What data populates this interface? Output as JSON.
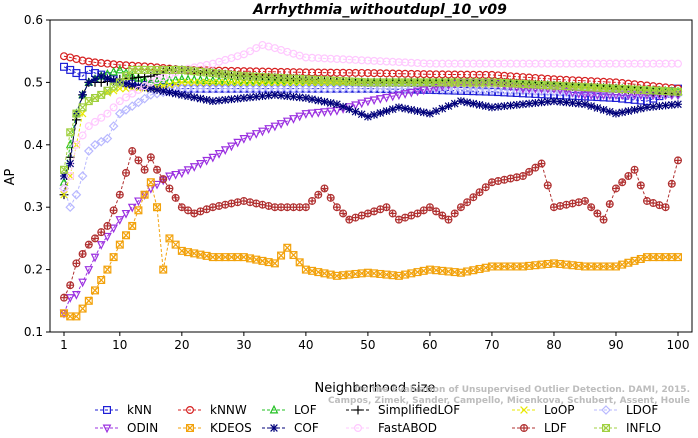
{
  "chart_data": {
    "type": "line",
    "title": "Arrhythmia_withoutdupl_10_v09",
    "xlabel": "Neighborhood size",
    "ylabel": "AP",
    "xlim": [
      1,
      100
    ],
    "ylim": [
      0.1,
      0.6
    ],
    "xticks": [
      1,
      10,
      20,
      30,
      40,
      50,
      60,
      70,
      80,
      90,
      100
    ],
    "yticks": [
      0.1,
      0.2,
      0.3,
      0.4,
      0.5,
      0.6
    ],
    "grid": false,
    "legend_position": "bottom",
    "credit_lines": [
      "On the Evaluation of Unsupervised Outlier Detection. DAMI, 2015.",
      "Campos, Zimek, Sander, Campello, Micenkova, Schubert, Assent, Houle"
    ],
    "series": [
      {
        "name": "kNN",
        "color": "#1f1fd6",
        "marker": "square",
        "points": [
          [
            1,
            0.525
          ],
          [
            2,
            0.52
          ],
          [
            3,
            0.515
          ],
          [
            4,
            0.51
          ],
          [
            5,
            0.52
          ],
          [
            6,
            0.515
          ],
          [
            8,
            0.51
          ],
          [
            10,
            0.5
          ],
          [
            15,
            0.495
          ],
          [
            20,
            0.49
          ],
          [
            30,
            0.49
          ],
          [
            40,
            0.49
          ],
          [
            50,
            0.49
          ],
          [
            60,
            0.488
          ],
          [
            70,
            0.485
          ],
          [
            80,
            0.48
          ],
          [
            90,
            0.475
          ],
          [
            95,
            0.47
          ],
          [
            100,
            0.49
          ]
        ]
      },
      {
        "name": "kNNW",
        "color": "#d62020",
        "marker": "circle",
        "points": [
          [
            1,
            0.542
          ],
          [
            2,
            0.54
          ],
          [
            4,
            0.535
          ],
          [
            6,
            0.532
          ],
          [
            8,
            0.53
          ],
          [
            10,
            0.528
          ],
          [
            15,
            0.525
          ],
          [
            20,
            0.52
          ],
          [
            30,
            0.518
          ],
          [
            40,
            0.516
          ],
          [
            50,
            0.515
          ],
          [
            60,
            0.513
          ],
          [
            70,
            0.512
          ],
          [
            80,
            0.505
          ],
          [
            90,
            0.5
          ],
          [
            100,
            0.49
          ]
        ]
      },
      {
        "name": "LOF",
        "color": "#22c022",
        "marker": "triangle-up",
        "points": [
          [
            1,
            0.34
          ],
          [
            2,
            0.4
          ],
          [
            3,
            0.45
          ],
          [
            4,
            0.48
          ],
          [
            5,
            0.5
          ],
          [
            7,
            0.51
          ],
          [
            10,
            0.52
          ],
          [
            12,
            0.51
          ],
          [
            15,
            0.5
          ],
          [
            20,
            0.505
          ],
          [
            30,
            0.5
          ],
          [
            40,
            0.5
          ],
          [
            50,
            0.5
          ],
          [
            60,
            0.5
          ],
          [
            70,
            0.5
          ],
          [
            80,
            0.495
          ],
          [
            90,
            0.49
          ],
          [
            100,
            0.485
          ]
        ]
      },
      {
        "name": "SimplifiedLOF",
        "color": "#000000",
        "marker": "plus",
        "points": [
          [
            1,
            0.32
          ],
          [
            2,
            0.38
          ],
          [
            3,
            0.44
          ],
          [
            4,
            0.48
          ],
          [
            5,
            0.5
          ],
          [
            7,
            0.5
          ],
          [
            10,
            0.505
          ],
          [
            15,
            0.51
          ],
          [
            18,
            0.52
          ],
          [
            20,
            0.52
          ],
          [
            30,
            0.51
          ],
          [
            40,
            0.505
          ],
          [
            50,
            0.5
          ],
          [
            60,
            0.5
          ],
          [
            70,
            0.5
          ],
          [
            80,
            0.495
          ],
          [
            90,
            0.49
          ],
          [
            100,
            0.48
          ]
        ]
      },
      {
        "name": "LoOP",
        "color": "#e8e800",
        "marker": "cross",
        "points": [
          [
            1,
            0.32
          ],
          [
            2,
            0.35
          ],
          [
            3,
            0.4
          ],
          [
            4,
            0.45
          ],
          [
            5,
            0.47
          ],
          [
            7,
            0.48
          ],
          [
            10,
            0.49
          ],
          [
            15,
            0.49
          ],
          [
            20,
            0.5
          ],
          [
            30,
            0.5
          ],
          [
            40,
            0.5
          ],
          [
            50,
            0.5
          ],
          [
            60,
            0.5
          ],
          [
            70,
            0.495
          ],
          [
            80,
            0.49
          ],
          [
            90,
            0.49
          ],
          [
            100,
            0.485
          ]
        ]
      },
      {
        "name": "LDOF",
        "color": "#b8b8ff",
        "marker": "diamond",
        "points": [
          [
            1,
            0.33
          ],
          [
            2,
            0.3
          ],
          [
            3,
            0.32
          ],
          [
            4,
            0.35
          ],
          [
            5,
            0.39
          ],
          [
            6,
            0.4
          ],
          [
            8,
            0.41
          ],
          [
            10,
            0.45
          ],
          [
            15,
            0.48
          ],
          [
            20,
            0.49
          ],
          [
            30,
            0.49
          ],
          [
            40,
            0.49
          ],
          [
            50,
            0.49
          ],
          [
            60,
            0.49
          ],
          [
            70,
            0.488
          ],
          [
            80,
            0.485
          ],
          [
            90,
            0.48
          ],
          [
            100,
            0.48
          ]
        ]
      },
      {
        "name": "ODIN",
        "color": "#9b30e0",
        "marker": "triangle-down",
        "points": [
          [
            1,
            0.13
          ],
          [
            2,
            0.155
          ],
          [
            3,
            0.16
          ],
          [
            5,
            0.2
          ],
          [
            7,
            0.24
          ],
          [
            10,
            0.28
          ],
          [
            13,
            0.31
          ],
          [
            15,
            0.33
          ],
          [
            18,
            0.35
          ],
          [
            20,
            0.355
          ],
          [
            25,
            0.38
          ],
          [
            30,
            0.41
          ],
          [
            35,
            0.43
          ],
          [
            40,
            0.45
          ],
          [
            45,
            0.455
          ],
          [
            50,
            0.47
          ],
          [
            55,
            0.48
          ],
          [
            60,
            0.49
          ],
          [
            65,
            0.5
          ],
          [
            70,
            0.5
          ],
          [
            75,
            0.49
          ],
          [
            80,
            0.49
          ],
          [
            85,
            0.48
          ],
          [
            90,
            0.48
          ],
          [
            95,
            0.48
          ],
          [
            100,
            0.48
          ]
        ]
      },
      {
        "name": "COF",
        "color": "#00007a",
        "marker": "star",
        "points": [
          [
            1,
            0.35
          ],
          [
            2,
            0.37
          ],
          [
            3,
            0.45
          ],
          [
            4,
            0.48
          ],
          [
            5,
            0.5
          ],
          [
            7,
            0.51
          ],
          [
            10,
            0.5
          ],
          [
            15,
            0.49
          ],
          [
            20,
            0.48
          ],
          [
            25,
            0.47
          ],
          [
            30,
            0.475
          ],
          [
            35,
            0.48
          ],
          [
            40,
            0.475
          ],
          [
            45,
            0.465
          ],
          [
            50,
            0.445
          ],
          [
            55,
            0.46
          ],
          [
            60,
            0.45
          ],
          [
            65,
            0.47
          ],
          [
            70,
            0.46
          ],
          [
            75,
            0.465
          ],
          [
            80,
            0.47
          ],
          [
            85,
            0.465
          ],
          [
            90,
            0.45
          ],
          [
            95,
            0.46
          ],
          [
            100,
            0.465
          ]
        ]
      },
      {
        "name": "FastABOD",
        "color": "#ffc8ff",
        "marker": "circle",
        "points": [
          [
            1,
            0.33
          ],
          [
            2,
            0.35
          ],
          [
            3,
            0.4
          ],
          [
            5,
            0.43
          ],
          [
            8,
            0.45
          ],
          [
            10,
            0.47
          ],
          [
            15,
            0.5
          ],
          [
            20,
            0.52
          ],
          [
            25,
            0.53
          ],
          [
            30,
            0.545
          ],
          [
            33,
            0.56
          ],
          [
            35,
            0.555
          ],
          [
            40,
            0.54
          ],
          [
            50,
            0.535
          ],
          [
            60,
            0.53
          ],
          [
            70,
            0.53
          ],
          [
            80,
            0.53
          ],
          [
            90,
            0.53
          ],
          [
            100,
            0.53
          ]
        ]
      },
      {
        "name": "KDEOS",
        "color": "#f2a20c",
        "marker": "square-x",
        "points": [
          [
            1,
            0.13
          ],
          [
            2,
            0.125
          ],
          [
            3,
            0.125
          ],
          [
            5,
            0.15
          ],
          [
            8,
            0.2
          ],
          [
            10,
            0.24
          ],
          [
            12,
            0.27
          ],
          [
            14,
            0.32
          ],
          [
            15,
            0.34
          ],
          [
            16,
            0.3
          ],
          [
            17,
            0.2
          ],
          [
            18,
            0.25
          ],
          [
            20,
            0.23
          ],
          [
            25,
            0.22
          ],
          [
            30,
            0.22
          ],
          [
            35,
            0.21
          ],
          [
            37,
            0.235
          ],
          [
            40,
            0.2
          ],
          [
            45,
            0.19
          ],
          [
            50,
            0.195
          ],
          [
            55,
            0.19
          ],
          [
            60,
            0.2
          ],
          [
            65,
            0.195
          ],
          [
            70,
            0.205
          ],
          [
            75,
            0.205
          ],
          [
            80,
            0.21
          ],
          [
            85,
            0.205
          ],
          [
            90,
            0.205
          ],
          [
            95,
            0.22
          ],
          [
            100,
            0.22
          ]
        ]
      },
      {
        "name": "LDF",
        "color": "#b03030",
        "marker": "circle-plus",
        "points": [
          [
            1,
            0.155
          ],
          [
            2,
            0.175
          ],
          [
            3,
            0.21
          ],
          [
            5,
            0.24
          ],
          [
            8,
            0.27
          ],
          [
            10,
            0.32
          ],
          [
            12,
            0.39
          ],
          [
            14,
            0.36
          ],
          [
            15,
            0.38
          ],
          [
            16,
            0.36
          ],
          [
            18,
            0.33
          ],
          [
            20,
            0.3
          ],
          [
            22,
            0.29
          ],
          [
            25,
            0.3
          ],
          [
            30,
            0.31
          ],
          [
            35,
            0.3
          ],
          [
            40,
            0.3
          ],
          [
            43,
            0.33
          ],
          [
            45,
            0.3
          ],
          [
            47,
            0.28
          ],
          [
            50,
            0.29
          ],
          [
            53,
            0.3
          ],
          [
            55,
            0.28
          ],
          [
            58,
            0.29
          ],
          [
            60,
            0.3
          ],
          [
            63,
            0.28
          ],
          [
            65,
            0.3
          ],
          [
            70,
            0.34
          ],
          [
            75,
            0.35
          ],
          [
            78,
            0.37
          ],
          [
            80,
            0.3
          ],
          [
            85,
            0.31
          ],
          [
            88,
            0.28
          ],
          [
            90,
            0.33
          ],
          [
            93,
            0.36
          ],
          [
            95,
            0.31
          ],
          [
            98,
            0.3
          ],
          [
            100,
            0.375
          ]
        ]
      },
      {
        "name": "INFLO",
        "color": "#a0d040",
        "marker": "square-x",
        "points": [
          [
            1,
            0.36
          ],
          [
            2,
            0.42
          ],
          [
            3,
            0.45
          ],
          [
            5,
            0.47
          ],
          [
            7,
            0.48
          ],
          [
            10,
            0.5
          ],
          [
            12,
            0.52
          ],
          [
            15,
            0.52
          ],
          [
            20,
            0.52
          ],
          [
            30,
            0.51
          ],
          [
            40,
            0.505
          ],
          [
            50,
            0.5
          ],
          [
            60,
            0.5
          ],
          [
            70,
            0.5
          ],
          [
            80,
            0.495
          ],
          [
            90,
            0.49
          ],
          [
            100,
            0.485
          ]
        ]
      }
    ]
  }
}
